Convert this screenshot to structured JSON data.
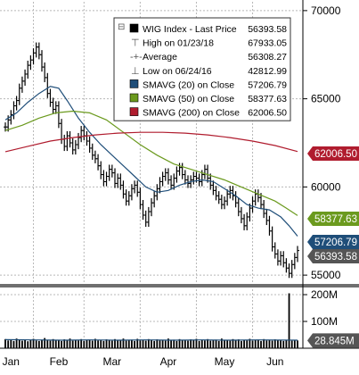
{
  "colors": {
    "price": "#000000",
    "sma20": "#1f4e79",
    "sma50": "#6b9a1e",
    "sma200": "#b01c2e",
    "volume": "#000000",
    "volume_avg": "#1f4e79",
    "grid": "#b8b8b8",
    "highlight_bg": "#555555"
  },
  "legend": {
    "rows": [
      {
        "label": "WIG Index - Last Price",
        "value": "56393.58",
        "swatch": "#000000",
        "marker": "square"
      },
      {
        "label": "High on 01/23/18",
        "value": "67933.05",
        "swatch": "#555555",
        "marker": "high"
      },
      {
        "label": "Average",
        "value": "56308.27",
        "swatch": "#555555",
        "marker": "avg"
      },
      {
        "label": "Low on 06/24/16",
        "value": "42812.99",
        "swatch": "#555555",
        "marker": "low"
      },
      {
        "label": "SMAVG (20)  on Close",
        "value": "57206.79",
        "swatch": "#1f4e79",
        "marker": "square"
      },
      {
        "label": "SMAVG (50)  on Close",
        "value": "58377.63",
        "swatch": "#6b9a1e",
        "marker": "square"
      },
      {
        "label": "SMAVG (200) on Close",
        "value": "62006.50",
        "swatch": "#b01c2e",
        "marker": "square"
      }
    ]
  },
  "chart_data": {
    "type": "line",
    "x_labels": [
      "Jan",
      "Feb",
      "Mar",
      "Apr",
      "May",
      "Jun"
    ],
    "price_axis": {
      "ylim": [
        54500,
        70500
      ],
      "ticks": [
        55000,
        60000,
        65000,
        70000
      ],
      "tick_labels": [
        "55000",
        "60000",
        "65000",
        "70000"
      ],
      "grid": true
    },
    "volume_axis": {
      "ylim": [
        0,
        220
      ],
      "ticks": [
        100,
        200
      ],
      "tick_labels": [
        "100M",
        "200M"
      ]
    },
    "last_value_tags": [
      {
        "text": "62006.50",
        "value": 62006.5,
        "color": "#b01c2e"
      },
      {
        "text": "58377.63",
        "value": 58377.63,
        "color": "#6b9a1e"
      },
      {
        "text": "57206.79",
        "value": 57206.79,
        "color": "#1f4e79"
      },
      {
        "text": "56393.58",
        "value": 56393.58,
        "color": "#555555"
      }
    ],
    "volume_tag": {
      "text": "28.845M",
      "value": 28.845
    },
    "series": [
      {
        "name": "WIG Index - Last Price",
        "color": "#000000",
        "values": [
          63400,
          63800,
          64100,
          64600,
          64900,
          65600,
          66000,
          66400,
          66900,
          67200,
          67600,
          67933,
          67500,
          66800,
          66200,
          65300,
          64800,
          64400,
          64600,
          63600,
          62700,
          62300,
          62900,
          62500,
          62100,
          62400,
          62800,
          63200,
          62900,
          62600,
          62200,
          61800,
          61600,
          61200,
          60700,
          60300,
          60600,
          61000,
          60800,
          60200,
          60500,
          60100,
          59600,
          59200,
          59500,
          59900,
          60100,
          59700,
          59000,
          58400,
          58000,
          58600,
          59100,
          59500,
          59900,
          60300,
          60600,
          60800,
          60400,
          60100,
          60500,
          60900,
          61100,
          60700,
          60400,
          60200,
          60400,
          60600,
          60500,
          60300,
          60700,
          61000,
          60500,
          60100,
          59800,
          59500,
          59300,
          59000,
          59200,
          59600,
          59800,
          59500,
          59100,
          58600,
          58200,
          57800,
          58300,
          58800,
          59200,
          59600,
          59400,
          59000,
          58500,
          58100,
          57500,
          56600,
          56200,
          55800,
          56100,
          55700,
          55400,
          55100,
          55600,
          56000,
          56394
        ]
      },
      {
        "name": "SMAVG (20)  on Close",
        "color": "#1f4e79",
        "values": [
          [
            0,
            63800
          ],
          [
            4,
            64200
          ],
          [
            8,
            64800
          ],
          [
            12,
            65300
          ],
          [
            16,
            65700
          ],
          [
            19,
            65600
          ],
          [
            22,
            64900
          ],
          [
            26,
            63900
          ],
          [
            30,
            63100
          ],
          [
            34,
            62400
          ],
          [
            38,
            61800
          ],
          [
            42,
            61200
          ],
          [
            46,
            60600
          ],
          [
            50,
            60000
          ],
          [
            54,
            59700
          ],
          [
            58,
            59800
          ],
          [
            62,
            60100
          ],
          [
            66,
            60300
          ],
          [
            70,
            60400
          ],
          [
            74,
            60300
          ],
          [
            78,
            59900
          ],
          [
            82,
            59500
          ],
          [
            86,
            59000
          ],
          [
            90,
            58800
          ],
          [
            94,
            58700
          ],
          [
            98,
            58300
          ],
          [
            101,
            57800
          ],
          [
            104,
            57207
          ]
        ]
      },
      {
        "name": "SMAVG (50)  on Close",
        "color": "#6b9a1e",
        "values": [
          [
            0,
            63200
          ],
          [
            6,
            63500
          ],
          [
            12,
            63900
          ],
          [
            18,
            64200
          ],
          [
            24,
            64300
          ],
          [
            30,
            64200
          ],
          [
            36,
            63800
          ],
          [
            42,
            63100
          ],
          [
            48,
            62400
          ],
          [
            54,
            61800
          ],
          [
            60,
            61300
          ],
          [
            66,
            61000
          ],
          [
            72,
            60700
          ],
          [
            78,
            60400
          ],
          [
            84,
            60000
          ],
          [
            90,
            59600
          ],
          [
            96,
            59200
          ],
          [
            100,
            58800
          ],
          [
            104,
            58378
          ]
        ]
      },
      {
        "name": "SMAVG (200) on Close",
        "color": "#b01c2e",
        "values": [
          [
            0,
            62000
          ],
          [
            8,
            62300
          ],
          [
            16,
            62600
          ],
          [
            24,
            62800
          ],
          [
            32,
            62950
          ],
          [
            40,
            63050
          ],
          [
            48,
            63100
          ],
          [
            56,
            63100
          ],
          [
            64,
            63050
          ],
          [
            72,
            62950
          ],
          [
            80,
            62800
          ],
          [
            88,
            62600
          ],
          [
            96,
            62350
          ],
          [
            104,
            62006.5
          ]
        ]
      }
    ],
    "volume": {
      "values": [
        34,
        29,
        31,
        27,
        36,
        30,
        28,
        33,
        26,
        31,
        35,
        29,
        27,
        32,
        38,
        30,
        28,
        34,
        29,
        31,
        27,
        33,
        30,
        36,
        28,
        31,
        29,
        34,
        27,
        30,
        32,
        28,
        35,
        29,
        31,
        27,
        33,
        30,
        28,
        34,
        29,
        31,
        36,
        28,
        30,
        32,
        27,
        35,
        29,
        31,
        28,
        34,
        30,
        27,
        33,
        29,
        31,
        28,
        36,
        30,
        32,
        27,
        34,
        29,
        31,
        28,
        33,
        30,
        35,
        27,
        31,
        29,
        34,
        28,
        30,
        32,
        27,
        36,
        29,
        31,
        28,
        34,
        30,
        33,
        27,
        31,
        29,
        35,
        28,
        30,
        32,
        27,
        34,
        29,
        31,
        28,
        33,
        30,
        29,
        27,
        31,
        205,
        28,
        30,
        29
      ],
      "avg": [
        [
          0,
          32
        ],
        [
          10,
          31
        ],
        [
          20,
          30
        ],
        [
          30,
          31
        ],
        [
          40,
          30
        ],
        [
          50,
          31
        ],
        [
          60,
          30
        ],
        [
          70,
          31
        ],
        [
          80,
          30
        ],
        [
          90,
          31
        ],
        [
          104,
          30
        ]
      ]
    }
  }
}
